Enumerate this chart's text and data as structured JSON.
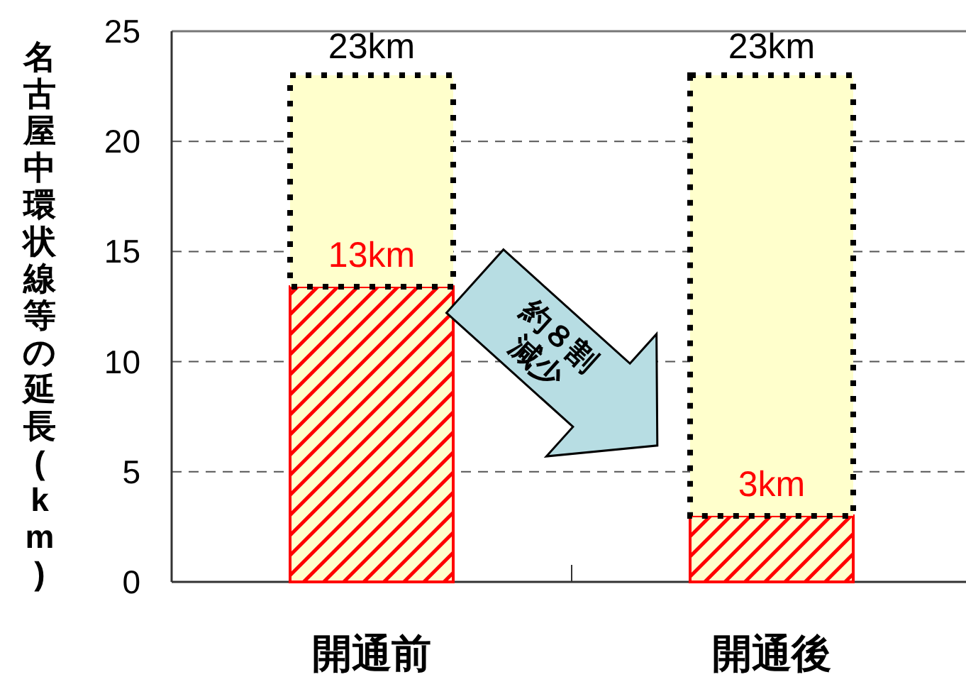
{
  "chart_data": {
    "type": "bar",
    "stacked": true,
    "categories": [
      "開通前",
      "開通後"
    ],
    "series": [
      {
        "color": "#ff0000",
        "values": [
          13.4,
          3
        ],
        "value_labels": [
          "13km",
          "3km"
        ]
      },
      {
        "color": "#ffffcc",
        "values": [
          9.6,
          20
        ]
      }
    ],
    "totals": [
      "23km",
      "23km"
    ],
    "ylabel": "名古屋中環状線等の延長(km)",
    "ylim": [
      0,
      25
    ],
    "yticks": [
      0,
      5,
      10,
      15,
      20,
      25
    ],
    "grid": "y",
    "annotations": [
      "約８割\n減少"
    ]
  }
}
